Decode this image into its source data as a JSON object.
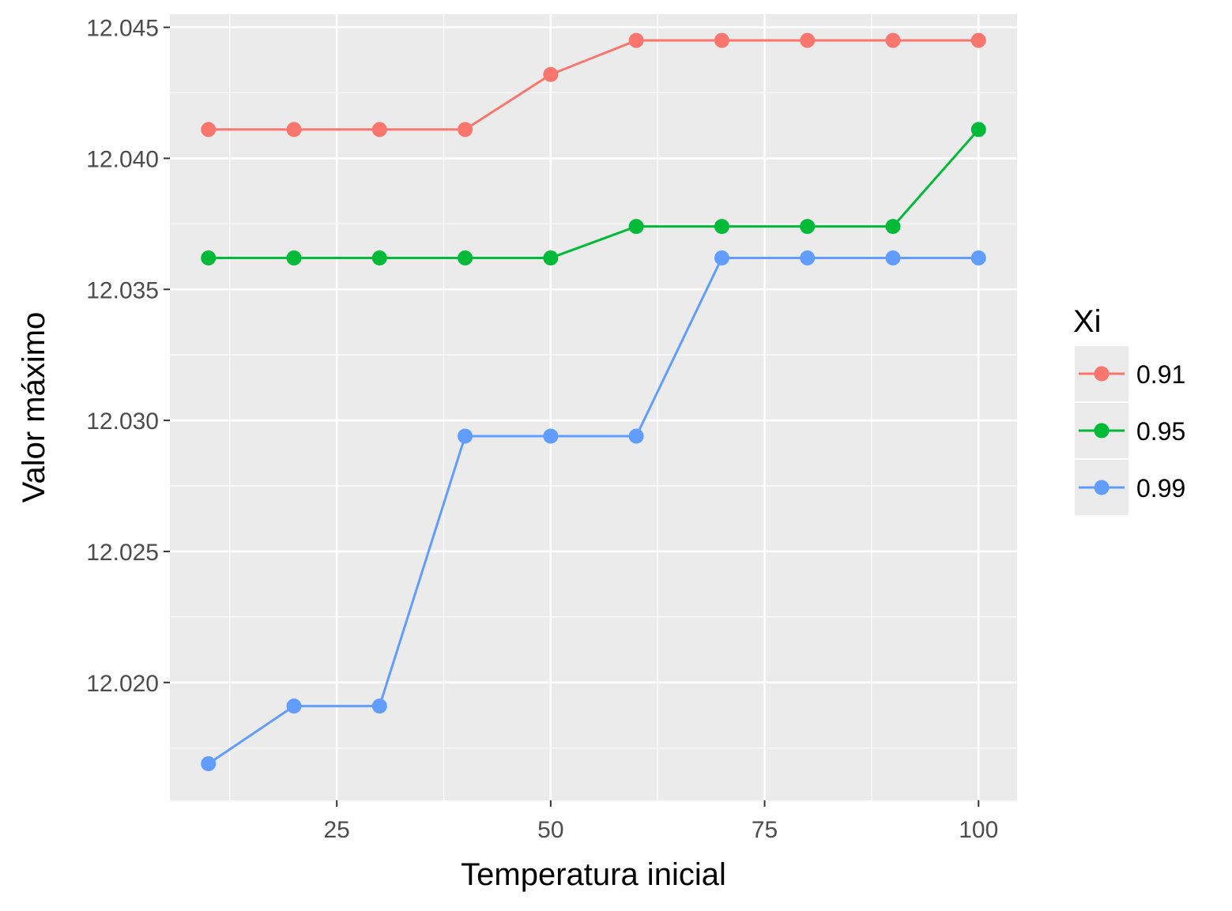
{
  "chart_data": {
    "type": "line",
    "xlabel": "Temperatura inicial",
    "ylabel": "Valor máximo",
    "xlim": [
      5.5,
      104.5
    ],
    "ylim": [
      12.0155,
      12.0455
    ],
    "x_ticks": [
      25,
      50,
      75,
      100
    ],
    "x_tick_labels": [
      "25",
      "50",
      "75",
      "100"
    ],
    "y_ticks": [
      12.02,
      12.025,
      12.03,
      12.035,
      12.04,
      12.045
    ],
    "y_tick_labels": [
      "12.020",
      "12.025",
      "12.030",
      "12.035",
      "12.040",
      "12.045"
    ],
    "grid": true,
    "legend": {
      "title": "Xi",
      "position": "right"
    },
    "x": [
      10,
      20,
      30,
      40,
      50,
      60,
      70,
      80,
      90,
      100
    ],
    "series": [
      {
        "name": "0.91",
        "color": "#F8766D",
        "values": [
          12.0411,
          12.0411,
          12.0411,
          12.0411,
          12.0432,
          12.0445,
          12.0445,
          12.0445,
          12.0445,
          12.0445
        ]
      },
      {
        "name": "0.95",
        "color": "#00BA38",
        "values": [
          12.0362,
          12.0362,
          12.0362,
          12.0362,
          12.0362,
          12.0374,
          12.0374,
          12.0374,
          12.0374,
          12.0411
        ]
      },
      {
        "name": "0.99",
        "color": "#619CFF",
        "values": [
          12.0169,
          12.0191,
          12.0191,
          12.0294,
          12.0294,
          12.0294,
          12.0362,
          12.0362,
          12.0362,
          12.0362
        ]
      }
    ]
  }
}
